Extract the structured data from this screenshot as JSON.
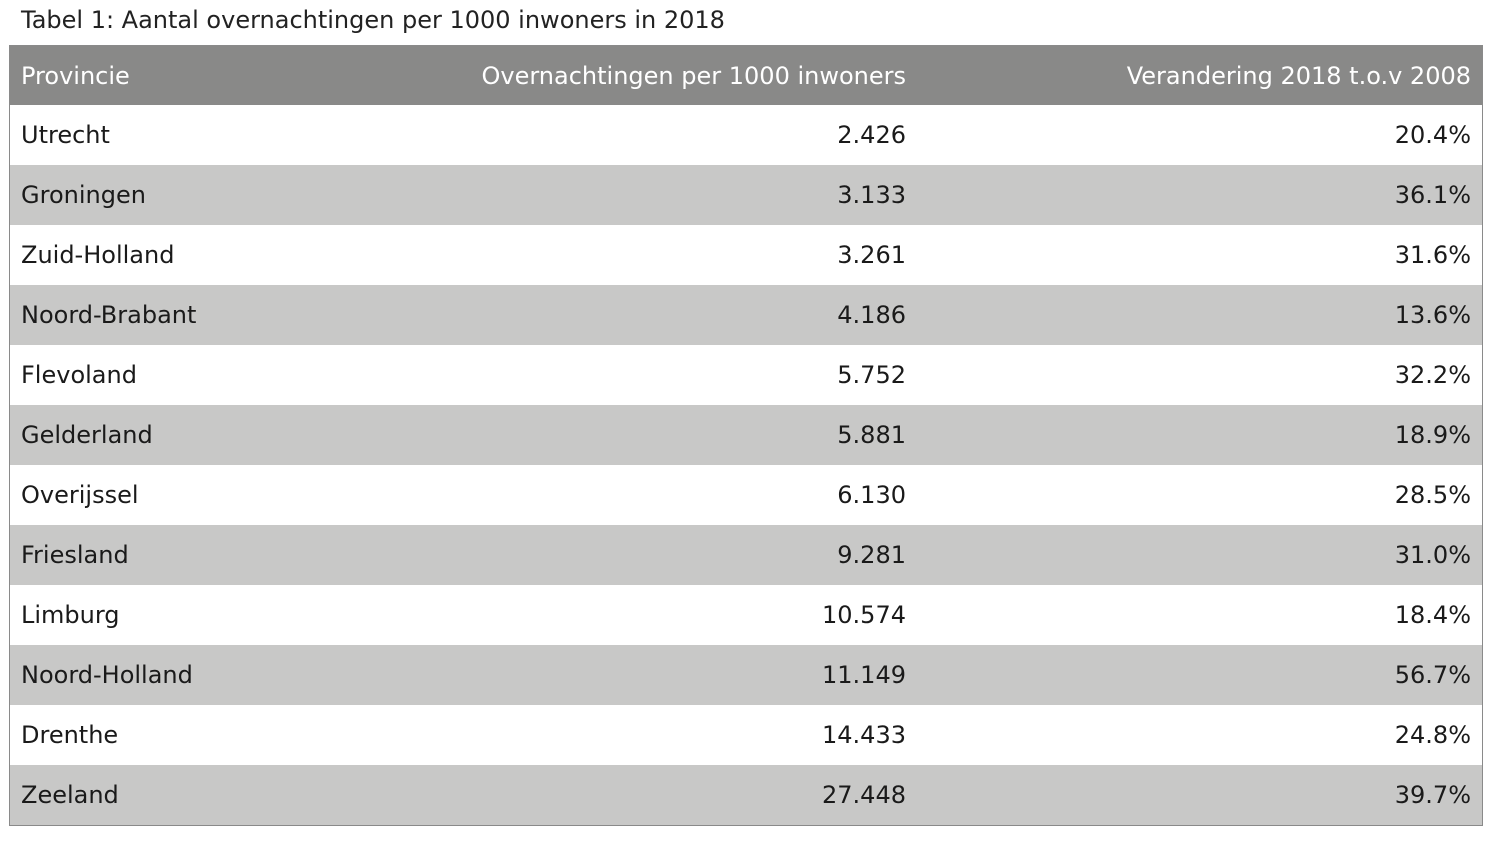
{
  "chart_data": {
    "type": "table",
    "title": "Tabel 1: Aantal overnachtingen per 1000 inwoners in 2018",
    "columns": [
      "Provincie",
      "Overnachtingen per 1000 inwoners",
      "Verandering 2018 t.o.v 2008"
    ],
    "rows": [
      [
        "Utrecht",
        "2.426",
        "20.4%"
      ],
      [
        "Groningen",
        "3.133",
        "36.1%"
      ],
      [
        "Zuid-Holland",
        "3.261",
        "31.6%"
      ],
      [
        "Noord-Brabant",
        "4.186",
        "13.6%"
      ],
      [
        "Flevoland",
        "5.752",
        "32.2%"
      ],
      [
        "Gelderland",
        "5.881",
        "18.9%"
      ],
      [
        "Overijssel",
        "6.130",
        "28.5%"
      ],
      [
        "Friesland",
        "9.281",
        "31.0%"
      ],
      [
        "Limburg",
        "10.574",
        "18.4%"
      ],
      [
        "Noord-Holland",
        "11.149",
        "56.7%"
      ],
      [
        "Drenthe",
        "14.433",
        "24.8%"
      ],
      [
        "Zeeland",
        "27.448",
        "39.7%"
      ]
    ],
    "colors": {
      "header_bg": "#898988",
      "header_text": "#ffffff",
      "band_bg": "#c8c8c7",
      "row_bg": "#ffffff"
    }
  }
}
